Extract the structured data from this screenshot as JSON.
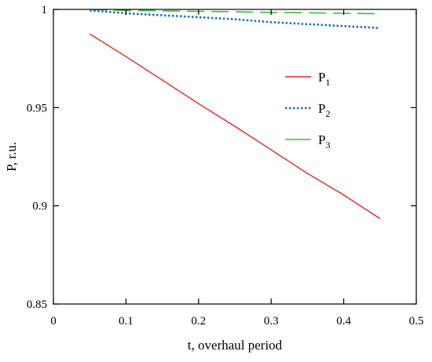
{
  "chart_data": {
    "type": "line",
    "title": "",
    "xlabel": "t, overhaul period",
    "ylabel": "P, r.u.",
    "xlim": [
      0,
      0.5
    ],
    "ylim": [
      0.85,
      1.0
    ],
    "xticks": [
      0,
      0.1,
      0.2,
      0.3,
      0.4,
      0.5
    ],
    "xtick_labels": [
      "0",
      "0.1",
      "0.2",
      "0.3",
      "0.4",
      "0.5"
    ],
    "yticks": [
      0.85,
      0.9,
      0.95,
      1.0
    ],
    "ytick_labels": [
      "0.85",
      "0.9",
      "0.95",
      "1"
    ],
    "grid": false,
    "legend_position": "right-upper",
    "series": [
      {
        "name": "P",
        "subscript": "1",
        "color": "#e8231f",
        "style": "solid",
        "x": [
          0.05,
          0.1,
          0.15,
          0.2,
          0.25,
          0.3,
          0.35,
          0.4,
          0.45
        ],
        "y": [
          0.9875,
          0.976,
          0.964,
          0.952,
          0.9405,
          0.9285,
          0.9165,
          0.9055,
          0.8935
        ]
      },
      {
        "name": "P",
        "subscript": "2",
        "color": "#1a6fc4",
        "style": "dotted",
        "x": [
          0.05,
          0.1,
          0.15,
          0.2,
          0.25,
          0.3,
          0.35,
          0.4,
          0.45
        ],
        "y": [
          0.9995,
          0.998,
          0.997,
          0.996,
          0.995,
          0.9935,
          0.9925,
          0.9915,
          0.9905
        ]
      },
      {
        "name": "P",
        "subscript": "3",
        "color": "#35c035",
        "style": "dashed",
        "x": [
          0.05,
          0.1,
          0.15,
          0.2,
          0.25,
          0.3,
          0.35,
          0.4,
          0.45
        ],
        "y": [
          1.0,
          0.9995,
          0.9993,
          0.999,
          0.9988,
          0.9985,
          0.9983,
          0.998,
          0.9978
        ]
      }
    ]
  }
}
